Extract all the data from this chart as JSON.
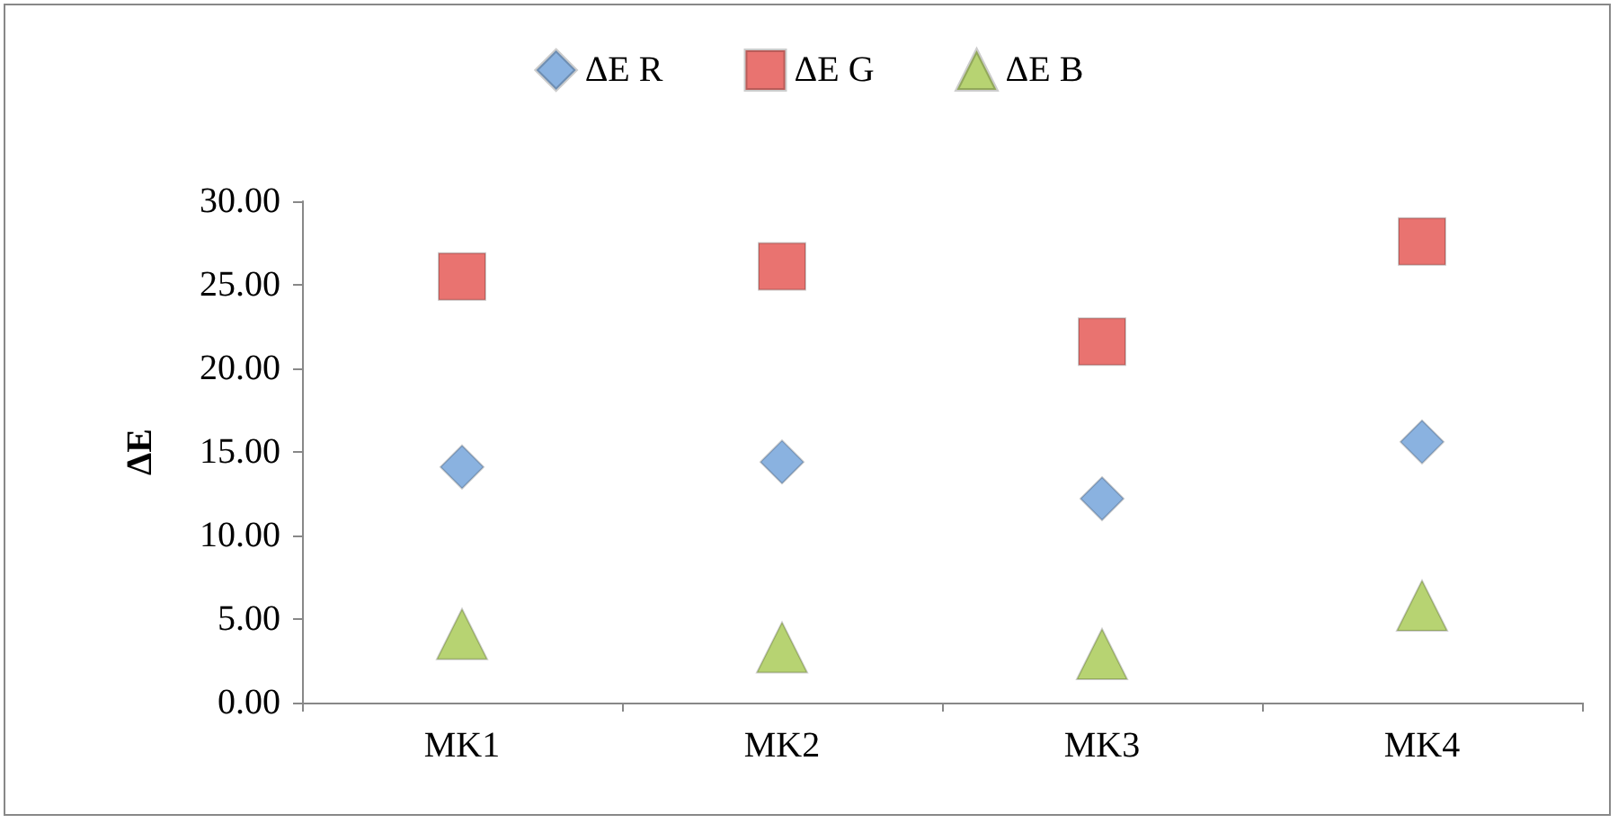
{
  "chart_data": {
    "type": "scatter",
    "ylabel": "ΔE",
    "categories": [
      "MK1",
      "MK2",
      "MK3",
      "MK4"
    ],
    "series": [
      {
        "name": "ΔE R",
        "color": "#6d9fd8",
        "marker": "diamond",
        "values": [
          14.1,
          14.4,
          12.2,
          15.6
        ]
      },
      {
        "name": "ΔE G",
        "color": "#e4504c",
        "marker": "square",
        "values": [
          25.5,
          26.1,
          21.6,
          27.6
        ]
      },
      {
        "name": "ΔE B",
        "color": "#a5c84f",
        "marker": "triangle",
        "values": [
          4.1,
          3.3,
          2.9,
          5.8
        ]
      }
    ],
    "ylim": [
      0,
      30
    ],
    "yticks": [
      {
        "value": 0,
        "label": "0.00"
      },
      {
        "value": 5,
        "label": "5.00"
      },
      {
        "value": 10,
        "label": "10.00"
      },
      {
        "value": 15,
        "label": "15.00"
      },
      {
        "value": 20,
        "label": "20.00"
      },
      {
        "value": 25,
        "label": "25.00"
      },
      {
        "value": 30,
        "label": "30.00"
      }
    ],
    "grid": false,
    "legend": "top"
  }
}
